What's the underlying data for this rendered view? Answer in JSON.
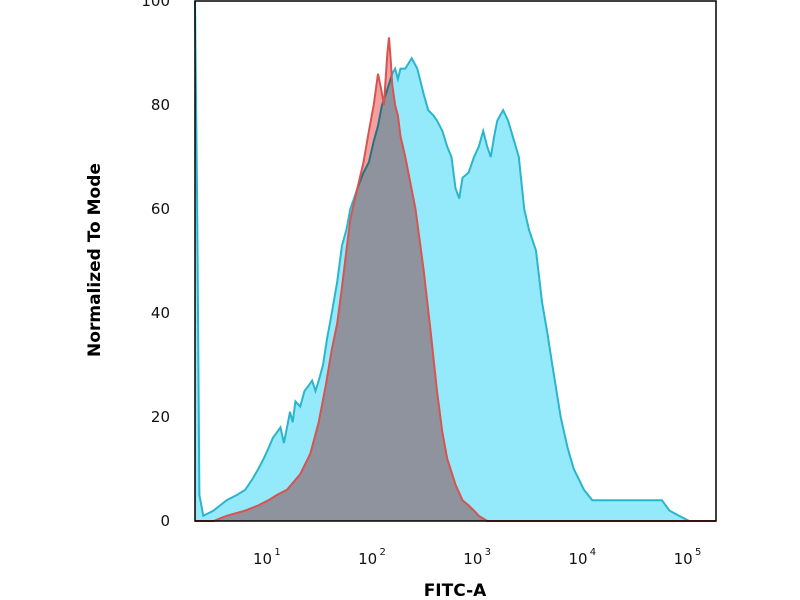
{
  "chart_data": {
    "type": "area",
    "xscale": "log",
    "xlabel": "FITC-A",
    "ylabel": "Normalized To Mode",
    "xlim": [
      2,
      180000
    ],
    "ylim": [
      0,
      100
    ],
    "yticks": [
      "0",
      "20",
      "40",
      "60",
      "80",
      "100"
    ],
    "xticks": [
      {
        "value": 10,
        "base": "10",
        "exp": "1"
      },
      {
        "value": 100,
        "base": "10",
        "exp": "2"
      },
      {
        "value": 1000,
        "base": "10",
        "exp": "3"
      },
      {
        "value": 10000,
        "base": "10",
        "exp": "4"
      },
      {
        "value": 100000,
        "base": "10",
        "exp": "5"
      }
    ],
    "grid": false,
    "series": [
      {
        "color_fill": "#29d6f5",
        "color_line": "#2bb5cc",
        "points": [
          [
            2.0,
            100
          ],
          [
            2.1,
            60
          ],
          [
            2.2,
            5
          ],
          [
            2.4,
            1
          ],
          [
            3,
            2
          ],
          [
            4,
            4
          ],
          [
            5,
            5
          ],
          [
            6,
            6
          ],
          [
            7,
            8
          ],
          [
            8,
            10
          ],
          [
            9,
            12
          ],
          [
            10,
            14
          ],
          [
            11,
            16
          ],
          [
            12,
            17
          ],
          [
            13,
            18
          ],
          [
            14,
            15
          ],
          [
            15,
            18
          ],
          [
            16,
            21
          ],
          [
            17,
            19
          ],
          [
            18,
            23
          ],
          [
            20,
            22
          ],
          [
            22,
            25
          ],
          [
            24,
            26
          ],
          [
            26,
            27
          ],
          [
            28,
            25
          ],
          [
            30,
            27
          ],
          [
            33,
            30
          ],
          [
            36,
            35
          ],
          [
            40,
            40
          ],
          [
            45,
            46
          ],
          [
            50,
            53
          ],
          [
            55,
            56
          ],
          [
            60,
            60
          ],
          [
            65,
            62
          ],
          [
            70,
            64
          ],
          [
            80,
            67
          ],
          [
            90,
            69
          ],
          [
            100,
            73
          ],
          [
            110,
            76
          ],
          [
            120,
            80
          ],
          [
            130,
            82
          ],
          [
            140,
            84
          ],
          [
            150,
            86
          ],
          [
            160,
            87
          ],
          [
            170,
            85
          ],
          [
            180,
            87
          ],
          [
            200,
            87
          ],
          [
            230,
            89
          ],
          [
            260,
            87
          ],
          [
            300,
            82
          ],
          [
            330,
            79
          ],
          [
            370,
            78
          ],
          [
            400,
            77
          ],
          [
            450,
            75
          ],
          [
            500,
            72
          ],
          [
            550,
            70
          ],
          [
            600,
            64
          ],
          [
            650,
            62
          ],
          [
            700,
            66
          ],
          [
            800,
            67
          ],
          [
            900,
            70
          ],
          [
            1000,
            72
          ],
          [
            1100,
            75
          ],
          [
            1200,
            72
          ],
          [
            1300,
            70
          ],
          [
            1400,
            74
          ],
          [
            1500,
            77
          ],
          [
            1700,
            79
          ],
          [
            1900,
            77
          ],
          [
            2100,
            74
          ],
          [
            2400,
            70
          ],
          [
            2700,
            60
          ],
          [
            3000,
            56
          ],
          [
            3500,
            52
          ],
          [
            4000,
            42
          ],
          [
            4500,
            36
          ],
          [
            5000,
            30
          ],
          [
            6000,
            20
          ],
          [
            7000,
            14
          ],
          [
            8000,
            10
          ],
          [
            10000,
            6
          ],
          [
            12000,
            4
          ],
          [
            15000,
            4
          ],
          [
            20000,
            4
          ],
          [
            30000,
            4
          ],
          [
            45000,
            4
          ],
          [
            55000,
            4
          ],
          [
            65000,
            2
          ],
          [
            80000,
            1
          ],
          [
            100000,
            0
          ],
          [
            180000,
            0
          ]
        ]
      },
      {
        "color_fill": "#f08080",
        "color_line": "#d9534f",
        "points": [
          [
            2.0,
            0
          ],
          [
            3,
            0
          ],
          [
            4,
            1
          ],
          [
            6,
            2
          ],
          [
            8,
            3
          ],
          [
            10,
            4
          ],
          [
            12,
            5
          ],
          [
            15,
            6
          ],
          [
            20,
            9
          ],
          [
            25,
            13
          ],
          [
            30,
            19
          ],
          [
            35,
            26
          ],
          [
            40,
            33
          ],
          [
            45,
            38
          ],
          [
            50,
            45
          ],
          [
            55,
            52
          ],
          [
            60,
            58
          ],
          [
            70,
            64
          ],
          [
            80,
            69
          ],
          [
            90,
            75
          ],
          [
            100,
            80
          ],
          [
            110,
            86
          ],
          [
            118,
            83
          ],
          [
            125,
            80
          ],
          [
            135,
            90
          ],
          [
            140,
            93
          ],
          [
            145,
            89
          ],
          [
            150,
            84
          ],
          [
            160,
            80
          ],
          [
            170,
            78
          ],
          [
            180,
            74
          ],
          [
            200,
            70
          ],
          [
            250,
            60
          ],
          [
            300,
            48
          ],
          [
            350,
            36
          ],
          [
            400,
            25
          ],
          [
            450,
            17
          ],
          [
            500,
            12
          ],
          [
            600,
            7
          ],
          [
            700,
            4
          ],
          [
            800,
            3
          ],
          [
            900,
            2
          ],
          [
            1000,
            1
          ],
          [
            1200,
            0
          ],
          [
            180000,
            0
          ]
        ]
      }
    ]
  }
}
